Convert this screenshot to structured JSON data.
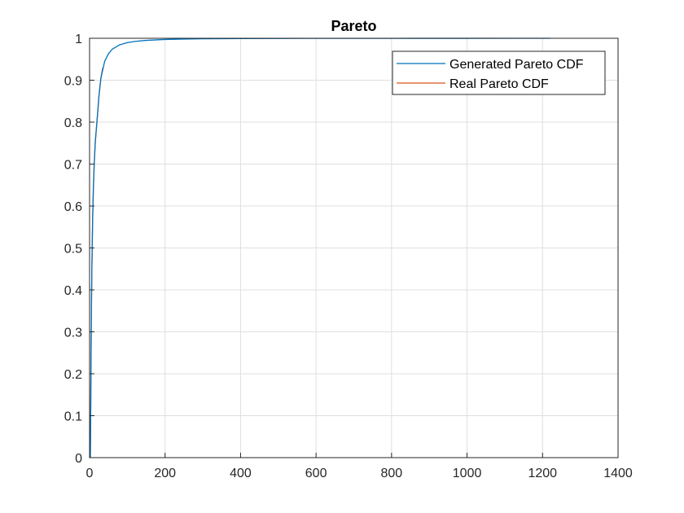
{
  "chart_data": {
    "type": "line",
    "title": "Pareto",
    "xlabel": "",
    "ylabel": "",
    "xlim": [
      0,
      1400
    ],
    "ylim": [
      0,
      1
    ],
    "xticks": [
      0,
      200,
      400,
      600,
      800,
      1000,
      1200,
      1400
    ],
    "yticks": [
      0,
      0.1,
      0.2,
      0.3,
      0.4,
      0.5,
      0.6,
      0.7,
      0.8,
      0.9,
      1
    ],
    "xtick_labels": [
      "0",
      "200",
      "400",
      "600",
      "800",
      "1000",
      "1200",
      "1400"
    ],
    "ytick_labels": [
      "0",
      "0.1",
      "0.2",
      "0.3",
      "0.4",
      "0.5",
      "0.6",
      "0.7",
      "0.8",
      "0.9",
      "1"
    ],
    "grid": true,
    "legend_position": "top-right",
    "series": [
      {
        "name": "Generated Pareto CDF",
        "color": "#0072BD",
        "x": [
          2,
          3,
          4,
          5,
          6,
          8,
          10,
          12,
          15,
          20,
          25,
          30,
          40,
          50,
          60,
          80,
          100,
          120,
          150,
          200,
          250,
          300,
          400,
          500,
          600,
          800,
          1000,
          1220
        ],
        "y": [
          0.0,
          0.111,
          0.25,
          0.36,
          0.444,
          0.5625,
          0.64,
          0.694,
          0.751,
          0.806,
          0.864,
          0.905,
          0.945,
          0.963,
          0.974,
          0.9845,
          0.9895,
          0.9925,
          0.995,
          0.9972,
          0.9982,
          0.9988,
          0.9993,
          0.9996,
          0.9997,
          0.9998,
          0.9999,
          1.0
        ]
      },
      {
        "name": "Real Pareto CDF",
        "color": "#D95319",
        "x": [
          2,
          3,
          4,
          5,
          6,
          8,
          10,
          12,
          15,
          20,
          25,
          30,
          35
        ],
        "y": [
          0.0,
          0.111,
          0.25,
          0.36,
          0.444,
          0.5625,
          0.64,
          0.694,
          0.751,
          0.806,
          0.864,
          0.905,
          0.93
        ]
      }
    ]
  }
}
